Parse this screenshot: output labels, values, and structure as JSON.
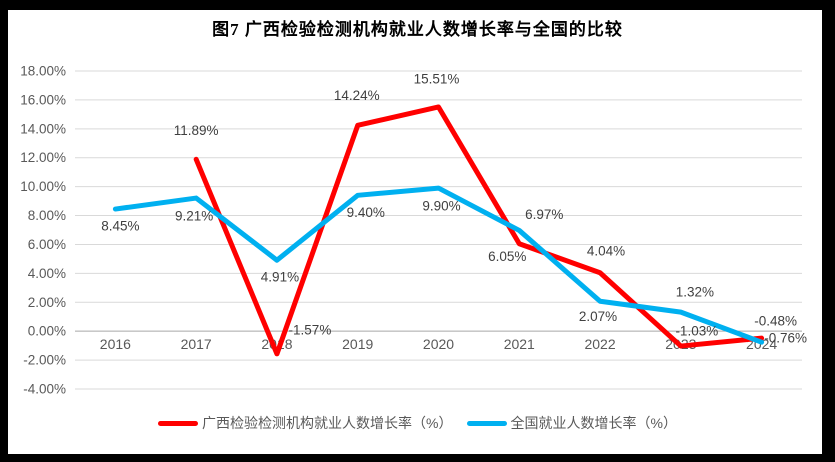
{
  "title": "图7 广西检验检测机构就业人数增长率与全国的比较",
  "colors": {
    "guangxi_line": "#FF0000",
    "national_line": "#00B0F0",
    "grid_line": "#D9D9D9",
    "zero_line": "#A6A6A6",
    "axis_text": "#595959",
    "data_label_text": "#404040",
    "title_text": "#000000",
    "legend_text": "#595959",
    "frame": "#000000"
  },
  "chart_data": {
    "type": "line",
    "title": "图7 广西检验检测机构就业人数增长率与全国的比较",
    "categories": [
      "2016",
      "2017",
      "2018",
      "2019",
      "2020",
      "2021",
      "2022",
      "2023",
      "2024"
    ],
    "y_axis": {
      "min": -4,
      "max": 18,
      "step": 2,
      "tick_labels": [
        "18.00%",
        "16.00%",
        "14.00%",
        "12.00%",
        "10.00%",
        "8.00%",
        "6.00%",
        "4.00%",
        "2.00%",
        "0.00%",
        "-2.00%",
        "-4.00%"
      ],
      "tick_values": [
        18,
        16,
        14,
        12,
        10,
        8,
        6,
        4,
        2,
        0,
        -2,
        -4
      ]
    },
    "grid": true,
    "legend_position": "bottom",
    "series": [
      {
        "name": "广西检验检测机构就业人数增长率（%）",
        "color": "#FF0000",
        "values": [
          null,
          11.89,
          -1.57,
          14.24,
          15.51,
          6.05,
          4.04,
          -1.03,
          -0.48
        ],
        "point_labels": [
          null,
          {
            "text": "11.89%",
            "dx": 0,
            "dy": -29
          },
          {
            "text": "-1.57%",
            "dx": 33,
            "dy": -24
          },
          {
            "text": "14.24%",
            "dx": -1,
            "dy": -30
          },
          {
            "text": "15.51%",
            "dx": -2,
            "dy": -28
          },
          {
            "text": "6.05%",
            "dx": -12,
            "dy": 13
          },
          {
            "text": "4.04%",
            "dx": 6,
            "dy": -22
          },
          {
            "text": "-1.03%",
            "dx": 16,
            "dy": -15
          },
          {
            "text": "-0.48%",
            "dx": 14,
            "dy": -17
          }
        ]
      },
      {
        "name": "全国就业人数增长率（%）",
        "color": "#00B0F0",
        "values": [
          8.45,
          9.21,
          4.91,
          9.4,
          9.9,
          6.97,
          2.07,
          1.32,
          -0.76
        ],
        "point_labels": [
          {
            "text": "8.45%",
            "dx": 5,
            "dy": 17
          },
          {
            "text": "9.21%",
            "dx": -2,
            "dy": 18
          },
          {
            "text": "4.91%",
            "dx": 3,
            "dy": 17
          },
          {
            "text": "9.40%",
            "dx": 8,
            "dy": 17
          },
          {
            "text": "9.90%",
            "dx": 3,
            "dy": 18
          },
          {
            "text": "6.97%",
            "dx": 25,
            "dy": -16
          },
          {
            "text": "2.07%",
            "dx": -2,
            "dy": 15
          },
          {
            "text": "1.32%",
            "dx": 14,
            "dy": -20
          },
          {
            "text": "-0.76%",
            "dx": 24,
            "dy": -4
          }
        ]
      }
    ]
  }
}
